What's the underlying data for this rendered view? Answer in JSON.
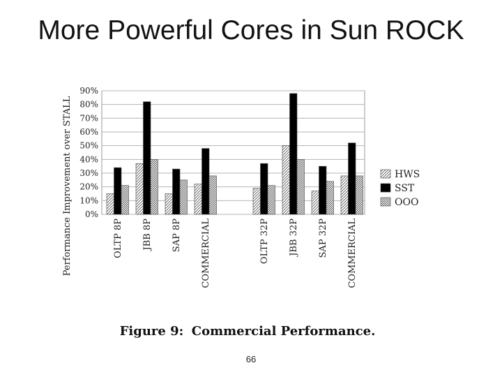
{
  "slide": {
    "title": "More Powerful Cores in Sun ROCK",
    "caption_label": "Figure 9:",
    "caption_text": "Commercial Performance.",
    "page_number": "66"
  },
  "chart_data": {
    "type": "bar",
    "title": "",
    "xlabel": "",
    "ylabel": "Performance Improvement over STALL",
    "ylim": [
      0,
      90
    ],
    "yticks": [
      "0%",
      "10%",
      "20%",
      "30%",
      "40%",
      "50%",
      "60%",
      "70%",
      "80%",
      "90%"
    ],
    "grid": true,
    "legend_position": "right",
    "categories": [
      "OLTP 8P",
      "JBB 8P",
      "SAP 8P",
      "COMMERCIAL",
      "OLTP 32P",
      "JBB 32P",
      "SAP 32P",
      "COMMERCIAL"
    ],
    "series": [
      {
        "name": "HWS",
        "pattern": "hatch",
        "values": [
          15,
          37,
          15,
          22,
          19,
          50,
          17,
          28
        ]
      },
      {
        "name": "SST",
        "pattern": "solid",
        "values": [
          34,
          82,
          33,
          48,
          37,
          88,
          35,
          52
        ]
      },
      {
        "name": "OOO",
        "pattern": "checker",
        "values": [
          21,
          40,
          25,
          28,
          21,
          40,
          24,
          28
        ]
      }
    ]
  }
}
